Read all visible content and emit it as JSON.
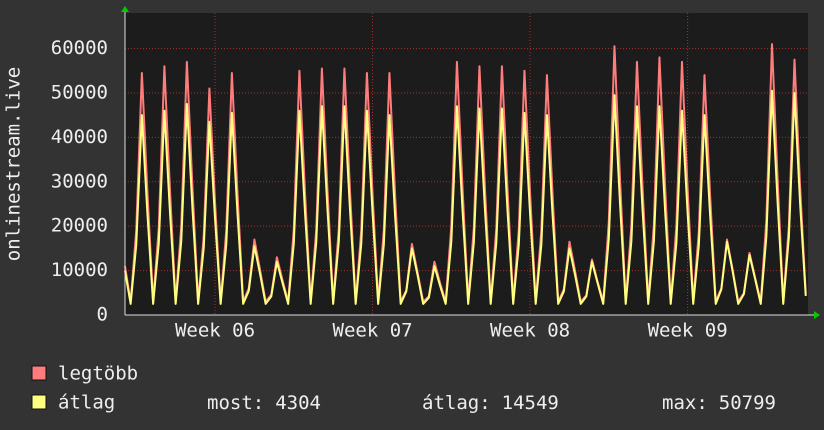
{
  "chart_data": {
    "type": "line",
    "y_label": "onlinestream.live",
    "x": [
      0,
      0.25,
      0.5,
      0.75,
      1,
      1.25,
      1.5,
      1.75,
      2,
      2.25,
      2.5,
      2.75,
      3,
      3.25,
      3.5,
      3.75,
      4,
      4.25,
      4.5,
      4.75,
      5,
      5.25,
      5.5,
      5.75,
      6,
      6.25,
      6.5,
      6.75,
      7,
      7.25,
      7.5,
      7.75,
      8,
      8.25,
      8.5,
      8.75,
      9,
      9.25,
      9.5,
      9.75,
      10,
      10.25,
      10.5,
      10.75,
      11,
      11.25,
      11.5,
      11.75,
      12,
      12.25,
      12.5,
      12.75,
      13,
      13.25,
      13.5,
      13.75,
      14,
      14.25,
      14.5,
      14.75,
      15,
      15.25,
      15.5,
      15.75,
      16,
      16.25,
      16.5,
      16.75,
      17,
      17.25,
      17.5,
      17.75,
      18,
      18.25,
      18.5,
      18.75,
      19,
      19.25,
      19.5,
      19.75,
      20,
      20.25,
      20.5,
      20.75,
      21,
      21.25,
      21.5,
      21.75,
      22,
      22.25,
      22.5,
      22.75,
      23,
      23.25,
      23.5,
      23.75,
      24,
      24.25,
      24.5,
      24.75,
      25,
      25.25,
      25.5,
      25.75,
      26,
      26.25,
      26.5,
      26.75,
      27,
      27.25,
      27.5,
      27.75,
      28,
      28.25,
      28.5,
      28.75,
      29,
      29.25,
      29.5,
      29.75,
      30,
      30.25
    ],
    "series": [
      {
        "name": "legtöbb",
        "color": "#ff7c7c",
        "values": [
          11000,
          3000,
          19100,
          54500,
          27300,
          3000,
          19600,
          56000,
          28000,
          3000,
          20000,
          57000,
          28500,
          3000,
          17900,
          51000,
          25500,
          3000,
          19100,
          54500,
          27300,
          3000,
          6000,
          17000,
          10200,
          3000,
          4600,
          13000,
          7800,
          3000,
          19300,
          55000,
          27500,
          3000,
          19400,
          55500,
          27800,
          3000,
          19400,
          55500,
          27800,
          3000,
          19100,
          54500,
          27300,
          3000,
          19100,
          54500,
          27300,
          3000,
          5600,
          16000,
          9600,
          3000,
          4200,
          12000,
          7200,
          3000,
          20000,
          57000,
          28500,
          3000,
          19600,
          56000,
          28000,
          3000,
          19600,
          56000,
          28000,
          3000,
          19300,
          55000,
          27500,
          3000,
          18900,
          54000,
          27000,
          3000,
          5800,
          16500,
          9900,
          3000,
          4400,
          12500,
          7500,
          3000,
          21200,
          60500,
          30300,
          3000,
          20000,
          57000,
          28500,
          3000,
          20300,
          58000,
          29000,
          3000,
          20000,
          57000,
          28500,
          3000,
          18900,
          54000,
          27000,
          3000,
          6000,
          17000,
          10200,
          3000,
          4900,
          14000,
          8400,
          3000,
          21400,
          61000,
          30500,
          3000,
          20100,
          57500,
          28800,
          4800
        ]
      },
      {
        "name": "átlag",
        "color": "#ffff80",
        "values": [
          10000,
          2500,
          15800,
          45000,
          22500,
          2500,
          16100,
          46000,
          23000,
          2500,
          16600,
          47500,
          23800,
          2500,
          15200,
          43500,
          21800,
          2500,
          15900,
          45500,
          22800,
          2500,
          5400,
          15500,
          9300,
          2500,
          4200,
          12000,
          7200,
          2500,
          16100,
          46000,
          23000,
          2500,
          16500,
          47000,
          23500,
          2500,
          16500,
          47000,
          23500,
          2500,
          16100,
          46000,
          23000,
          2500,
          15800,
          45000,
          22500,
          2500,
          5300,
          15000,
          9000,
          2500,
          3900,
          11000,
          6600,
          2500,
          16500,
          47000,
          23500,
          2500,
          16300,
          46500,
          23300,
          2500,
          16300,
          46500,
          23300,
          2500,
          15900,
          45500,
          22800,
          2500,
          15800,
          45000,
          22500,
          2500,
          5300,
          15000,
          9000,
          2500,
          4200,
          12000,
          7200,
          2500,
          17300,
          49500,
          24800,
          2500,
          16500,
          47000,
          23500,
          2500,
          16500,
          47000,
          23500,
          2500,
          16100,
          46000,
          23000,
          2500,
          15800,
          45000,
          22500,
          2500,
          5800,
          16500,
          9900,
          2500,
          4700,
          13500,
          8100,
          2500,
          17700,
          50500,
          25300,
          2500,
          17500,
          50000,
          25000,
          4304
        ]
      }
    ],
    "xlim": [
      0,
      30.35
    ],
    "xticks": [
      {
        "value": 4,
        "label": "Week 06"
      },
      {
        "value": 11,
        "label": "Week 07"
      },
      {
        "value": 18,
        "label": "Week 08"
      },
      {
        "value": 25,
        "label": "Week 09"
      }
    ],
    "ylim": [
      0,
      68000
    ],
    "yticks": [
      0,
      10000,
      20000,
      30000,
      40000,
      50000,
      60000
    ],
    "grid": true,
    "stats": [
      {
        "label": "most:",
        "value": 4304
      },
      {
        "label": "átlag:",
        "value": 14549
      },
      {
        "label": "max:",
        "value": 50799
      }
    ]
  }
}
